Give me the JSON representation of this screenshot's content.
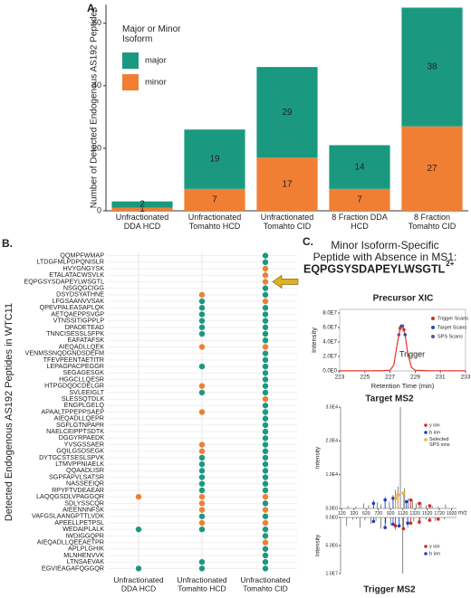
{
  "chart_data": [
    {
      "type": "bar",
      "panel": "A.",
      "ylabel": "Number of Detected Endogenous AS192 Peptides",
      "categories": [
        "Unfractionated\nDDA HCD",
        "Unfractionated\nTomahto HCD",
        "Unfractionated\nTomahto CID",
        "8 Fraction DDA\nHCD",
        "8 Fraction\nTomahto CID"
      ],
      "series": [
        {
          "name": "minor",
          "color": "#f07f33",
          "values": [
            1,
            7,
            17,
            7,
            27
          ]
        },
        {
          "name": "major",
          "color": "#1a9980",
          "values": [
            2,
            19,
            29,
            14,
            38
          ]
        }
      ],
      "legend_title": "Major or Minor\nIsoform",
      "ylim": [
        0,
        66
      ],
      "yticks": [
        0,
        20,
        40,
        60
      ]
    },
    {
      "type": "dot",
      "panel": "B.",
      "ylabel": "Detected Endogenous AS192 Peptides in WTC11",
      "x_categories": [
        "Unfractionated\nDDA HCD",
        "Unfractionated\nTomahto HCD",
        "Unfractionated\nTomahto CID"
      ],
      "colors": {
        "major": "#1a9980",
        "minor": "#f07f33"
      },
      "categories": [
        "QQMPFWMAP",
        "LTDGFMLPDPQNISLR",
        "HVYGNGYSK",
        "ETALATACWSVLK",
        "EQPGSYSDAPEYLWSGTL",
        "NSGQGCIGG",
        "DSYDSYATHNE",
        "LFGSAANVVSAK",
        "QPEVPALEASAPLQK",
        "AETQAEPPSVGP",
        "VTNSSITIGPPLP",
        "DPADETEAD",
        "TNNCISESSLSFPK",
        "EAFATAFSK",
        "AIEQADLLQEK",
        "VENMSSNQDGNDSDEFM",
        "TFEVPEENTAETITR",
        "LEPAGPACPEGGR",
        "SEGAGESGK",
        "HGGCLLQESR",
        "HTPGDQDCDELGR",
        "SVLEEIGLT",
        "SLESSQTDLK",
        "ENGPLGELQ",
        "APAALTPPEPPSAEP",
        "AIEQADLLQEPR",
        "SGFLGTNPAPR",
        "NAELCEIPPTSDTK",
        "DGGYRPAEDK",
        "YVSGSSAER",
        "GQILGSDSEGK",
        "DYTGCSTSESLSPVK",
        "LTMVPPNIAELK",
        "QQAADLISR",
        "SGPFAPVLSATSR",
        "NASSEEIQR",
        "RPYFTVDEAEAR",
        "LAQQGSDLVPAGGQR",
        "SDLYSSCQR",
        "AIEENNNFSK",
        "VAFGSLAANGPTTLVDK",
        "APEELLPETPSL",
        "WEDAIPLALK",
        "IWDIGGQPR",
        "AIEQADLLQEEAETPR",
        "APLPLGHIK",
        "MLNHENVVK",
        "LTNSAEVAK",
        "EGVIEAGAFQGGQR"
      ],
      "cells": [
        [
          null,
          null,
          "major"
        ],
        [
          null,
          null,
          "major"
        ],
        [
          null,
          null,
          "minor"
        ],
        [
          null,
          null,
          "minor"
        ],
        [
          null,
          null,
          "minor"
        ],
        [
          null,
          null,
          "major"
        ],
        [
          null,
          "minor",
          "major"
        ],
        [
          null,
          "major",
          "minor"
        ],
        [
          null,
          "major",
          "major"
        ],
        [
          null,
          "major",
          "major"
        ],
        [
          null,
          "major",
          "major"
        ],
        [
          null,
          "major",
          "major"
        ],
        [
          null,
          "major",
          "major"
        ],
        [
          null,
          null,
          "major"
        ],
        [
          null,
          "minor",
          "minor"
        ],
        [
          null,
          null,
          "major"
        ],
        [
          null,
          null,
          "major"
        ],
        [
          null,
          "major",
          "major"
        ],
        [
          null,
          null,
          "major"
        ],
        [
          null,
          null,
          "major"
        ],
        [
          null,
          "minor",
          "major"
        ],
        [
          null,
          "major",
          "major"
        ],
        [
          null,
          null,
          "minor"
        ],
        [
          null,
          null,
          "major"
        ],
        [
          null,
          "minor",
          "major"
        ],
        [
          null,
          null,
          "major"
        ],
        [
          null,
          null,
          "major"
        ],
        [
          null,
          null,
          "major"
        ],
        [
          null,
          null,
          "major"
        ],
        [
          null,
          "minor",
          "major"
        ],
        [
          null,
          "minor",
          "major"
        ],
        [
          null,
          "major",
          "major"
        ],
        [
          null,
          "major",
          "major"
        ],
        [
          null,
          "major",
          "major"
        ],
        [
          null,
          "major",
          "major"
        ],
        [
          null,
          "major",
          "major"
        ],
        [
          null,
          "major",
          "major"
        ],
        [
          "minor",
          "minor",
          "minor"
        ],
        [
          null,
          "minor",
          "major"
        ],
        [
          null,
          "minor",
          "minor"
        ],
        [
          null,
          "major",
          "major"
        ],
        [
          null,
          "minor",
          "minor"
        ],
        [
          "major",
          "major",
          "major"
        ],
        [
          null,
          null,
          "major"
        ],
        [
          null,
          null,
          "minor"
        ],
        [
          null,
          null,
          "major"
        ],
        [
          null,
          null,
          "major"
        ],
        [
          null,
          "major",
          "major"
        ],
        [
          "major",
          "major",
          "major"
        ]
      ]
    },
    {
      "type": "line",
      "panel": "C.",
      "title": "Minor Isoform-Specific\nPeptide with Absence in MS1:",
      "peptide": "EQPGSYSDAPEYLWSGTL",
      "charge": "2+",
      "subtitle": "Precursor XIC",
      "xlabel": "Retention Time (min)",
      "ylabel": "Intensity",
      "annotation": "Trigger",
      "color": "#e8332a",
      "x": [
        223,
        224,
        225,
        226,
        226.5,
        227,
        227.3,
        227.6,
        227.8,
        228,
        228.2,
        228.4,
        228.7,
        229,
        230,
        231,
        232,
        233
      ],
      "values": [
        200000,
        200000,
        250000,
        300000,
        300000,
        1000000,
        8000000,
        40000000,
        58000000,
        62000000,
        50000000,
        25000000,
        5000000,
        1000000,
        300000,
        250000,
        200000,
        200000
      ],
      "xlim": [
        223,
        233
      ],
      "xticks": [
        223,
        225,
        227,
        229,
        231,
        233
      ],
      "ylim": [
        0,
        85000000
      ],
      "yticks": [
        {
          "value": 0,
          "label": "0.0E0"
        },
        {
          "value": 20000000,
          "label": "2.0E7"
        },
        {
          "value": 40000000,
          "label": "4.0E7"
        },
        {
          "value": 60000000,
          "label": "6.0E7"
        },
        {
          "value": 80000000,
          "label": "8.0E7"
        }
      ],
      "series": [
        {
          "name": "Trigger Scans",
          "color": "#c0392b",
          "x": [
            227.8,
            228.1
          ],
          "values": [
            59000000,
            57000000
          ]
        },
        {
          "name": "Target Scans",
          "color": "#2c4fa3",
          "x": [
            227.9,
            228.2
          ],
          "values": [
            62000000,
            50000000
          ]
        },
        {
          "name": "SPS Scans",
          "color": "#6b4c9a",
          "x": [
            228,
            227.7
          ],
          "values": [
            62000000,
            50000000
          ]
        }
      ]
    },
    {
      "type": "mirror",
      "title_top": "Target MS2",
      "title_bottom": "Trigger MS2",
      "ylabel": "Intensity",
      "xlabel": "m/z",
      "xlim": [
        100,
        2000
      ],
      "xticks": [
        120,
        320,
        520,
        720,
        920,
        1120,
        1320,
        1520,
        1720,
        1920
      ],
      "ylim_top": [
        0,
        30000
      ],
      "yticks_top": [
        {
          "value": 0,
          "label": "0.0E0"
        },
        {
          "value": 10000,
          "label": "1.0E4"
        },
        {
          "value": 20000,
          "label": "2.0E4"
        },
        {
          "value": 30000,
          "label": "3.0E4"
        }
      ],
      "ylim_bottom": [
        0,
        10000000
      ],
      "yticks_bottom": [
        {
          "value": 0,
          "label": "0.0E0"
        },
        {
          "value": 5000000,
          "label": "5.0E6"
        },
        {
          "value": 10000000,
          "label": "1.0E7"
        }
      ],
      "peaks_top": {
        "color": "#555555",
        "x": [
          220,
          350,
          480,
          560,
          640,
          700,
          760,
          830,
          900,
          960,
          1000,
          1040,
          1080,
          1150,
          1210,
          1280,
          1340,
          1420,
          1500,
          1600,
          1700,
          1820
        ],
        "values": [
          800,
          600,
          1500,
          1000,
          2500,
          1800,
          1200,
          3500,
          2000,
          4000,
          5500,
          6500,
          30000,
          6000,
          3000,
          2500,
          1500,
          1800,
          1000,
          800,
          600,
          1200
        ]
      },
      "series_top": [
        {
          "name": "y ion",
          "color": "#d62728",
          "x": [
            1000,
            1130,
            1250,
            1390,
            1560
          ],
          "values": [
            3000,
            4500,
            2500,
            1500,
            800
          ]
        },
        {
          "name": "b ion",
          "color": "#1f3fbf",
          "x": [
            640,
            830,
            960,
            1040,
            1180
          ],
          "values": [
            1500,
            2500,
            3000,
            4000,
            2000
          ]
        },
        {
          "name": "Selected\nSPS ions",
          "color": "#f2b134",
          "x": [
            1000,
            1040,
            1130
          ],
          "values": [
            3000,
            4000,
            4500
          ]
        }
      ],
      "peaks_bottom": {
        "color": "#555555",
        "x": [
          200,
          300,
          360,
          420,
          500,
          600,
          680,
          760,
          840,
          920,
          1000,
          1060,
          1120,
          1200,
          1300,
          1400,
          1500,
          1650,
          1800
        ],
        "values": [
          1500000,
          400000,
          300000,
          1800000,
          500000,
          1200000,
          600000,
          2000000,
          1000000,
          1400000,
          2200000,
          1600000,
          10000000,
          1800000,
          700000,
          1200000,
          400000,
          600000,
          300000
        ]
      },
      "series_bottom": [
        {
          "name": "y ion",
          "color": "#d62728",
          "x": [
            1000,
            1130,
            1250,
            1390,
            1560,
            1700
          ],
          "values": [
            1500000,
            2000000,
            1000000,
            800000,
            500000,
            300000
          ]
        },
        {
          "name": "b ion",
          "color": "#1f3fbf",
          "x": [
            640,
            830,
            960,
            1060,
            1200
          ],
          "values": [
            700000,
            1800000,
            1200000,
            1500000,
            1000000
          ]
        }
      ]
    }
  ]
}
